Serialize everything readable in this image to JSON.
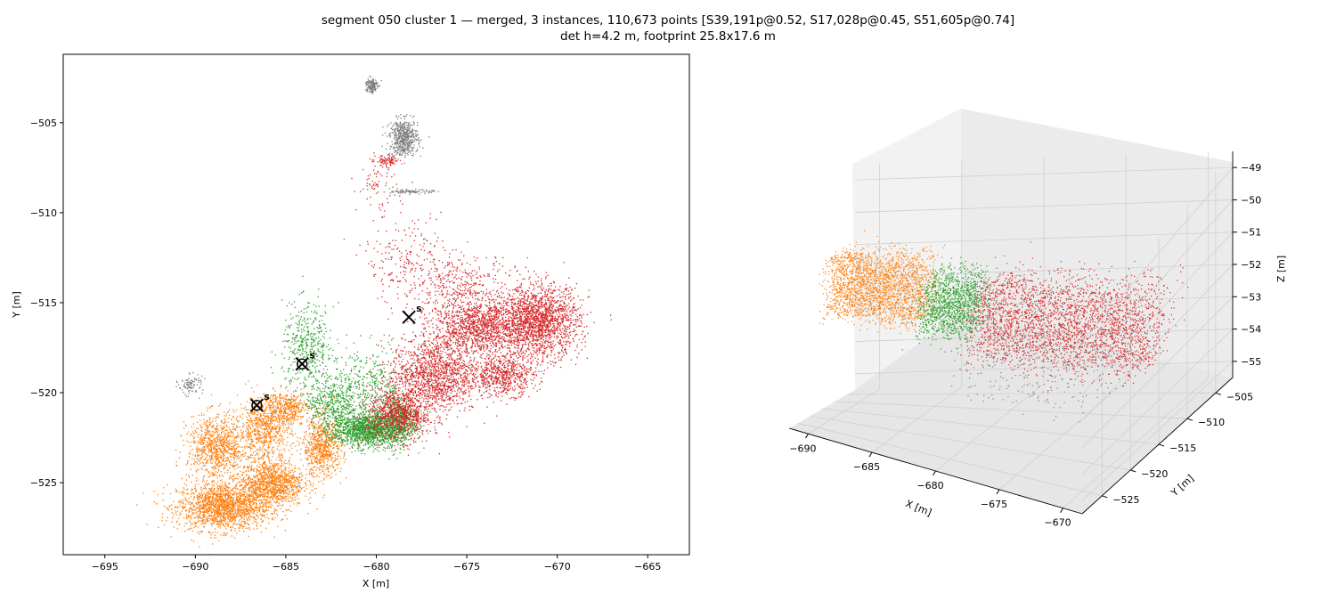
{
  "title_line1": "segment 050 cluster 1 — merged, 3 instances, 110,673 points [S39,191p@0.52, S17,028p@0.45, S51,605p@0.74]",
  "title_line2": "det h=4.2 m, footprint 25.8x17.6 m",
  "colors": {
    "orange": "#ff7f0e",
    "green": "#2ca02c",
    "red": "#d62728",
    "gray": "#7f7f7f",
    "axis": "#000000",
    "pane": "#f2f2f2",
    "grid3d": "#d0d0d0"
  },
  "chart_data": [
    {
      "type": "scatter",
      "view": "top-down 2D",
      "xlabel": "X [m]",
      "ylabel": "Y [m]",
      "xlim": [
        -697.3,
        -662.7
      ],
      "ylim": [
        -529.0,
        -501.2
      ],
      "xticks": [
        -695,
        -690,
        -685,
        -680,
        -675,
        -670,
        -665
      ],
      "yticks": [
        -505,
        -510,
        -515,
        -520,
        -525
      ],
      "series": [
        {
          "color": "orange",
          "blobs": [
            {
              "cx": -688.5,
              "cy": -526.3,
              "rx": 2.3,
              "ry": 1.2,
              "n": 1700
            },
            {
              "cx": -685.8,
              "cy": -525.0,
              "rx": 1.6,
              "ry": 1.2,
              "n": 1100
            },
            {
              "cx": -688.8,
              "cy": -523.0,
              "rx": 1.5,
              "ry": 1.6,
              "n": 900
            },
            {
              "cx": -686.2,
              "cy": -522.0,
              "rx": 1.3,
              "ry": 1.6,
              "n": 700
            },
            {
              "cx": -683.0,
              "cy": -523.0,
              "rx": 1.0,
              "ry": 1.5,
              "n": 700
            },
            {
              "cx": -685.0,
              "cy": -520.8,
              "rx": 1.2,
              "ry": 0.8,
              "n": 400
            }
          ]
        },
        {
          "color": "green",
          "blobs": [
            {
              "cx": -680.5,
              "cy": -522.0,
              "rx": 1.8,
              "ry": 0.9,
              "n": 1500
            },
            {
              "cx": -678.8,
              "cy": -521.5,
              "rx": 0.9,
              "ry": 1.3,
              "n": 500
            },
            {
              "cx": -682.5,
              "cy": -520.5,
              "rx": 1.3,
              "ry": 1.2,
              "n": 400
            },
            {
              "cx": -683.8,
              "cy": -517.5,
              "rx": 1.3,
              "ry": 2.2,
              "n": 450
            },
            {
              "cx": -680.5,
              "cy": -519.5,
              "rx": 2.0,
              "ry": 1.8,
              "n": 350
            }
          ]
        },
        {
          "color": "red",
          "blobs": [
            {
              "cx": -671.0,
              "cy": -516.0,
              "rx": 2.0,
              "ry": 1.8,
              "n": 1700
            },
            {
              "cx": -674.3,
              "cy": -516.3,
              "rx": 2.4,
              "ry": 1.4,
              "n": 1300
            },
            {
              "cx": -676.8,
              "cy": -519.0,
              "rx": 2.2,
              "ry": 1.9,
              "n": 1400
            },
            {
              "cx": -678.8,
              "cy": -521.2,
              "rx": 1.6,
              "ry": 1.3,
              "n": 900
            },
            {
              "cx": -673.0,
              "cy": -519.0,
              "rx": 1.6,
              "ry": 1.0,
              "n": 600
            },
            {
              "cx": -675.5,
              "cy": -514.0,
              "rx": 2.8,
              "ry": 1.6,
              "n": 400
            },
            {
              "cx": -678.5,
              "cy": -512.5,
              "rx": 2.0,
              "ry": 2.2,
              "n": 180
            },
            {
              "cx": -680.0,
              "cy": -508.5,
              "rx": 1.0,
              "ry": 1.2,
              "n": 70
            },
            {
              "cx": -679.4,
              "cy": -507.1,
              "rx": 0.6,
              "ry": 0.3,
              "n": 90
            }
          ]
        },
        {
          "color": "gray",
          "blobs": [
            {
              "cx": -678.5,
              "cy": -505.8,
              "rx": 0.7,
              "ry": 0.9,
              "n": 550
            },
            {
              "cx": -680.3,
              "cy": -502.9,
              "rx": 0.3,
              "ry": 0.4,
              "n": 160
            },
            {
              "cx": -678.0,
              "cy": -508.8,
              "rx": 1.0,
              "ry": 0.1,
              "n": 100
            },
            {
              "cx": -690.3,
              "cy": -519.5,
              "rx": 0.6,
              "ry": 0.5,
              "n": 90
            }
          ]
        }
      ],
      "markers": [
        {
          "x": -686.6,
          "y": -520.7,
          "label": "s",
          "circled": true
        },
        {
          "x": -684.1,
          "y": -518.4,
          "label": "s",
          "circled": true
        },
        {
          "x": -678.2,
          "y": -515.8,
          "label": "s",
          "circled": false
        }
      ]
    },
    {
      "type": "scatter",
      "view": "3D perspective",
      "xlabel": "X [m]",
      "ylabel": "Y [m]",
      "zlabel": "Z [m]",
      "xlim": [
        -691.5,
        -668.5
      ],
      "ylim": [
        -528.5,
        -502.0
      ],
      "zlim": [
        -55.5,
        -48.5
      ],
      "xticks": [
        -690,
        -685,
        -680,
        -675,
        -670
      ],
      "yticks": [
        -505,
        -510,
        -515,
        -520,
        -525
      ],
      "zticks": [
        -49,
        -50,
        -51,
        -52,
        -53,
        -54,
        -55
      ],
      "grid": true,
      "bands": [
        {
          "color": "orange",
          "x": [
            -691.0,
            -684.5
          ],
          "z": [
            -52.2,
            -50.2
          ],
          "n": 2200
        },
        {
          "color": "green",
          "x": [
            -684.5,
            -681.0
          ],
          "z": [
            -52.4,
            -50.6
          ],
          "n": 1300
        },
        {
          "color": "red",
          "x": [
            -681.0,
            -669.0
          ],
          "z": [
            -53.0,
            -50.6
          ],
          "n": 3000
        },
        {
          "color": "gray",
          "x": [
            -682.0,
            -672.0
          ],
          "z": [
            -54.6,
            -52.6
          ],
          "n": 220
        }
      ]
    }
  ]
}
